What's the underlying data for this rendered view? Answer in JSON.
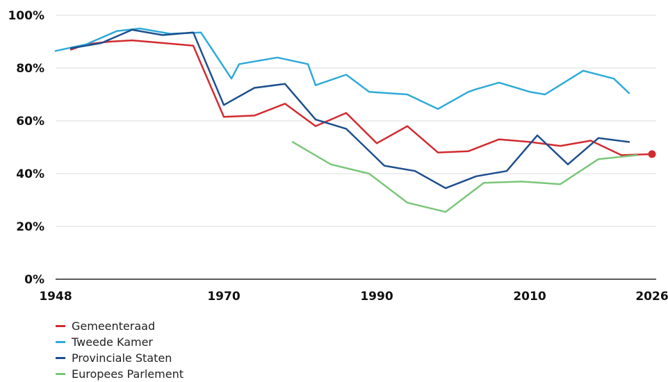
{
  "chart_data": {
    "type": "line",
    "xlim": [
      1948,
      2026
    ],
    "ylim": [
      0,
      100
    ],
    "x_ticks": [
      "1948",
      "1970",
      "1990",
      "2010",
      "2026"
    ],
    "x_tick_values": [
      1948,
      1970,
      1990,
      2010,
      2026
    ],
    "y_ticks": [
      "0%",
      "20%",
      "40%",
      "60%",
      "80%",
      "100%"
    ],
    "y_tick_values": [
      0,
      20,
      40,
      60,
      80,
      100
    ],
    "grid": "horizontal",
    "legend_position": "bottom-left",
    "end_marker": {
      "series": "Gemeenteraad",
      "x": 2026,
      "y": 47.4
    },
    "series": [
      {
        "name": "Gemeenteraad",
        "color": "#d12b2f",
        "x": [
          1950,
          1952,
          1955,
          1958,
          1962,
          1966,
          1970,
          1974,
          1978,
          1982,
          1986,
          1990,
          1994,
          1998,
          2002,
          2006,
          2010,
          2014,
          2018,
          2022,
          2026
        ],
        "y": [
          87,
          89,
          90,
          90.5,
          89.5,
          88.5,
          61.5,
          62,
          66.5,
          58,
          63,
          51.5,
          58,
          48,
          48.5,
          53,
          52,
          50.5,
          52.5,
          47,
          47.4
        ]
      },
      {
        "name": "Tweede Kamer",
        "color": "#2eaad8",
        "x": [
          1948,
          1952,
          1956,
          1959,
          1963,
          1967,
          1971,
          1972,
          1977,
          1981,
          1982,
          1986,
          1989,
          1994,
          1998,
          2002,
          2003,
          2006,
          2010,
          2012,
          2017,
          2021,
          2023
        ],
        "y": [
          86.5,
          89,
          94,
          95,
          93,
          93.5,
          76,
          81.5,
          84,
          81.5,
          73.5,
          77.5,
          71,
          70,
          64.5,
          71,
          72,
          74.5,
          71,
          70,
          79,
          76,
          70.5
        ]
      },
      {
        "name": "Provinciale Staten",
        "color": "#1d4f8c",
        "x": [
          1950,
          1954,
          1958,
          1962,
          1966,
          1970,
          1974,
          1978,
          1982,
          1986,
          1991,
          1995,
          1999,
          2003,
          2007,
          2011,
          2015,
          2019,
          2023
        ],
        "y": [
          87.5,
          89.5,
          94.5,
          92.5,
          93.5,
          66,
          72.5,
          74,
          60.5,
          57,
          43,
          41,
          34.5,
          39,
          41,
          54.5,
          43.5,
          53.5,
          52
        ]
      },
      {
        "name": "Europees Parlement",
        "color": "#7ac67a",
        "x": [
          1979,
          1984,
          1989,
          1994,
          1999,
          2004,
          2009,
          2014,
          2019,
          2024
        ],
        "y": [
          52,
          43.5,
          40,
          29,
          25.5,
          36.5,
          37,
          36,
          45.5,
          47
        ]
      }
    ]
  }
}
